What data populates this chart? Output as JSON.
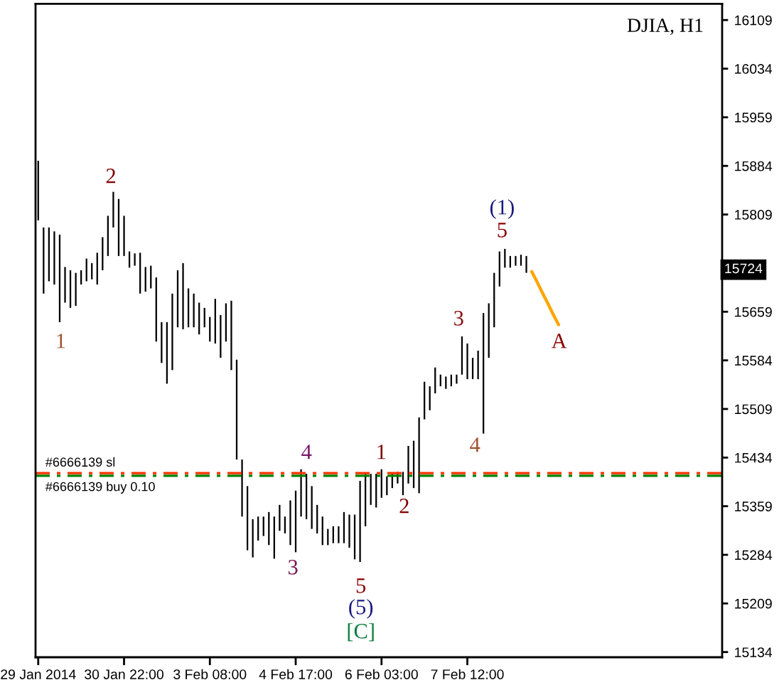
{
  "chart_data": {
    "type": "bar",
    "title": "DJIA, H1",
    "categories": [
      "29 Jan 2014",
      null,
      null,
      null,
      null,
      null,
      null,
      null,
      null,
      null,
      null,
      null,
      null,
      null,
      null,
      null,
      "30 Jan 22:00",
      null,
      null,
      null,
      null,
      null,
      null,
      null,
      null,
      null,
      null,
      null,
      null,
      null,
      null,
      null,
      "3 Feb 08:00",
      null,
      null,
      null,
      null,
      null,
      null,
      null,
      null,
      null,
      null,
      null,
      null,
      null,
      null,
      null,
      "4 Feb 17:00",
      null,
      null,
      null,
      null,
      null,
      null,
      null,
      null,
      null,
      null,
      null,
      null,
      null,
      null,
      null,
      "6 Feb 03:00",
      null,
      null,
      null,
      null,
      null,
      null,
      null,
      null,
      null,
      null,
      null,
      null,
      null,
      null,
      null,
      "7 Feb 12:00",
      null,
      null,
      null,
      null,
      null,
      null,
      null,
      null,
      null,
      null,
      null,
      null,
      null,
      null,
      null,
      null,
      null,
      null,
      null,
      null,
      null,
      null,
      null,
      null,
      null,
      null,
      null,
      null,
      null,
      null,
      null,
      null,
      null,
      null,
      null,
      null,
      null,
      null,
      null,
      null,
      null,
      null,
      null,
      null,
      null,
      null,
      null
    ],
    "ylim": [
      15126,
      16134
    ],
    "yticks": [
      15134,
      15209,
      15284,
      15359,
      15434,
      15509,
      15584,
      15659,
      15809,
      15884,
      15959,
      16034,
      16109
    ],
    "series": [
      {
        "color": "#000000",
        "base": [
          15800,
          15687,
          15706,
          15701,
          15643,
          15673,
          15665,
          15668,
          15701,
          15706,
          15709,
          15701,
          15723,
          15745,
          15789,
          15745,
          15745,
          15727,
          15730,
          15687,
          15690,
          15695,
          15613,
          15580,
          15548,
          15569,
          15635,
          15632,
          15635,
          15635,
          15624,
          15635,
          15613,
          15610,
          15588,
          15613,
          15569,
          15431,
          15343,
          15291,
          15280,
          15306,
          15313,
          15299,
          15278,
          15321,
          15317,
          15299,
          15288,
          15343,
          15339,
          15324,
          15317,
          15299,
          15299,
          15302,
          15302,
          15302,
          15295,
          15277,
          15273,
          15328,
          15361,
          15357,
          15372,
          15376,
          15387,
          15394,
          15376,
          15394,
          15387,
          15379,
          15493,
          15507,
          15533,
          15544,
          15540,
          15544,
          15548,
          15562,
          15555,
          15555,
          15555,
          15471,
          15588,
          15635,
          15698,
          15727,
          15727,
          15730,
          15730,
          15719,
          null,
          null,
          null,
          null,
          null,
          null,
          null,
          null,
          null,
          null,
          null,
          null,
          null,
          null,
          null,
          null,
          null,
          null,
          null,
          null,
          null,
          null,
          null,
          null,
          null,
          null,
          null,
          null,
          null,
          null,
          null,
          null,
          null,
          null,
          null,
          null
        ],
        "values": [
          92,
          102,
          83,
          82,
          135,
          55,
          58,
          51,
          22,
          35,
          25,
          49,
          51,
          62,
          55,
          88,
          62,
          25,
          19,
          63,
          38,
          35,
          99,
          63,
          95,
          118,
          88,
          102,
          60,
          52,
          49,
          30,
          38,
          69,
          66,
          59,
          107,
          154,
          88,
          99,
          59,
          37,
          30,
          51,
          65,
          40,
          26,
          69,
          95,
          73,
          70,
          66,
          44,
          44,
          25,
          26,
          26,
          48,
          51,
          69,
          125,
          81,
          48,
          52,
          44,
          29,
          22,
          18,
          36,
          58,
          73,
          117,
          58,
          37,
          40,
          18,
          19,
          18,
          14,
          59,
          55,
          33,
          44,
          186,
          84,
          84,
          54,
          29,
          18,
          15,
          17,
          26,
          null,
          null,
          null,
          null,
          null,
          null,
          null,
          null,
          null,
          null,
          null,
          null,
          null,
          null,
          null,
          null,
          null,
          null,
          null,
          null,
          null,
          null,
          null,
          null,
          null,
          null,
          null,
          null,
          null,
          null,
          null,
          null,
          null,
          null,
          null,
          null
        ]
      },
      {
        "type": "line",
        "color": "#ffa500",
        "values": [
          null,
          null,
          null,
          null,
          null,
          null,
          null,
          null,
          null,
          null,
          null,
          null,
          null,
          null,
          null,
          null,
          null,
          null,
          null,
          null,
          null,
          null,
          null,
          null,
          null,
          null,
          null,
          null,
          null,
          null,
          null,
          null,
          null,
          null,
          null,
          null,
          null,
          null,
          null,
          null,
          null,
          null,
          null,
          null,
          null,
          null,
          null,
          null,
          null,
          null,
          null,
          null,
          null,
          null,
          null,
          null,
          null,
          null,
          null,
          null,
          null,
          null,
          null,
          null,
          null,
          null,
          null,
          null,
          null,
          null,
          null,
          null,
          null,
          null,
          null,
          null,
          null,
          null,
          null,
          null,
          null,
          null,
          null,
          null,
          null,
          null,
          null,
          null,
          null,
          null,
          null,
          null,
          15721,
          15705,
          15688,
          15672,
          15655,
          15639,
          null,
          null,
          null,
          null,
          null,
          null,
          null,
          null,
          null,
          null,
          null,
          null,
          null,
          null,
          null,
          null,
          null,
          null,
          null,
          null,
          null,
          null,
          null,
          null,
          null,
          null,
          null,
          null,
          null,
          null
        ]
      }
    ],
    "ref_lines": [
      {
        "axis": "y",
        "value": 15410,
        "label": "#6666139 sl",
        "color": "#ff3300",
        "line_style": "dashdot"
      },
      {
        "axis": "y",
        "value": 15406,
        "label": "#6666139 buy 0.10",
        "color": "#008000",
        "line_style": "dashdot"
      }
    ],
    "annotations": [
      "2",
      "1",
      "4",
      "3",
      "5",
      "(5)",
      "[C]",
      "1",
      "2",
      "3",
      "4",
      "5",
      "(1)",
      "A",
      {
        "text": "15724",
        "y": 15724
      }
    ]
  }
}
